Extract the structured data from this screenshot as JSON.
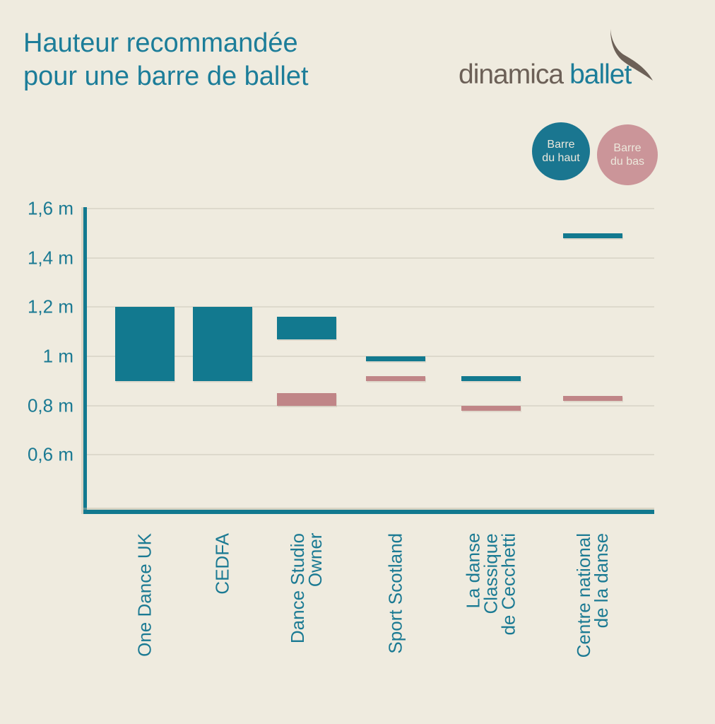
{
  "title": {
    "line1": "Hauteur recommandée",
    "line2": "pour une barre de ballet"
  },
  "logo": {
    "word1": "dinamica",
    "word2": "ballet"
  },
  "legend": {
    "haut": {
      "line1": "Barre",
      "line2": "du haut"
    },
    "bas": {
      "line1": "Barre",
      "line2": "du bas"
    }
  },
  "colors": {
    "background": "#efebdf",
    "teal": "#12798f",
    "teal_text": "#1c7d99",
    "pink": "#c08587",
    "legend_haut_circle": "#1a7690",
    "legend_bas_circle": "#cb9599",
    "logo_gray": "#6c6057",
    "gridline": "#ddd9cc",
    "legend_text": "#ece8dc"
  },
  "chart_data": {
    "type": "bar",
    "subtype": "floating-range-columns",
    "title": "Hauteur recommandée pour une barre de ballet",
    "unit": "m",
    "grid": true,
    "legend_position": "top-right",
    "ylim": [
      0.4,
      1.6
    ],
    "y_ticks": [
      1.6,
      1.4,
      1.2,
      1.0,
      0.8,
      0.6
    ],
    "y_tick_labels": [
      "1,6 m",
      "1,4 m",
      "1,2 m",
      "1 m",
      "0,8 m",
      "0,6 m"
    ],
    "categories": [
      "One Dance UK",
      "CEDFA",
      "Dance Studio Owner",
      "Sport Scotland",
      "La danse Classique de Cecchetti",
      "Centre national de la danse"
    ],
    "x_tick_lines": [
      [
        "One Dance UK"
      ],
      [
        "CEDFA"
      ],
      [
        "Dance Studio",
        "Owner"
      ],
      [
        "Sport Scotland"
      ],
      [
        "La danse",
        "Classique",
        "de Cecchetti"
      ],
      [
        "Centre national",
        "de la danse"
      ]
    ],
    "series": [
      {
        "name": "Barre du haut",
        "color": "#12798f",
        "ranges": [
          [
            0.9,
            1.2
          ],
          [
            0.9,
            1.2
          ],
          [
            1.07,
            1.16
          ],
          [
            0.98,
            1.0
          ],
          [
            0.9,
            0.92
          ],
          [
            1.48,
            1.5
          ]
        ]
      },
      {
        "name": "Barre du bas",
        "color": "#c08587",
        "ranges": [
          null,
          null,
          [
            0.8,
            0.85
          ],
          [
            0.9,
            0.92
          ],
          [
            0.78,
            0.8
          ],
          [
            0.82,
            0.84
          ]
        ]
      }
    ]
  }
}
